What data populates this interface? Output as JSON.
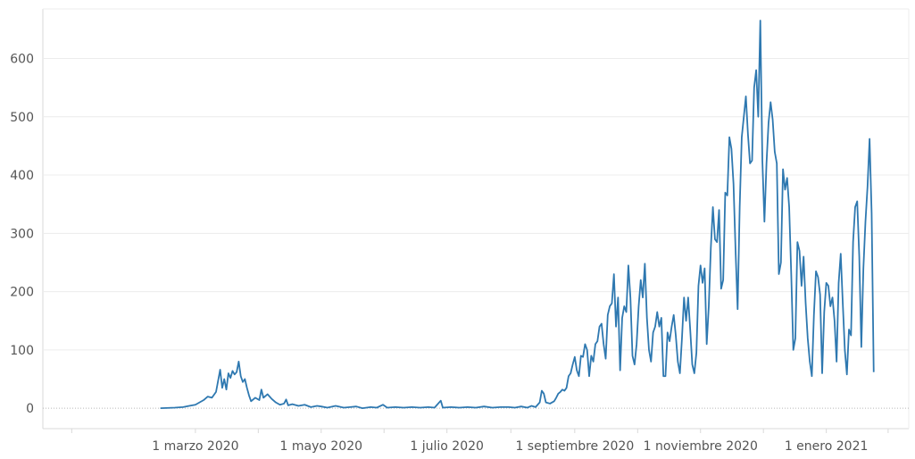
{
  "chart_data": {
    "type": "line",
    "title": "",
    "xlabel": "",
    "ylabel": "",
    "x_axis": {
      "type": "date",
      "range": [
        "2019-12-18",
        "2021-02-10"
      ],
      "ticks": [
        {
          "date": "2020-03-01",
          "label": "1 marzo 2020"
        },
        {
          "date": "2020-05-01",
          "label": "1 mayo 2020"
        },
        {
          "date": "2020-07-01",
          "label": "1 julio 2020"
        },
        {
          "date": "2020-09-01",
          "label": "1 septiembre 2020"
        },
        {
          "date": "2020-11-01",
          "label": "1 noviembre 2020"
        },
        {
          "date": "2021-01-01",
          "label": "1 enero 2021"
        }
      ]
    },
    "y_axis": {
      "range": [
        -35,
        685
      ],
      "ticks": [
        0,
        100,
        200,
        300,
        400,
        500,
        600
      ]
    },
    "grid": true,
    "legend": "none",
    "colors": {
      "series": "#2e78b0",
      "grid": "#ececec",
      "text": "#555555"
    },
    "series": [
      {
        "points": [
          [
            "2020-02-13",
            0
          ],
          [
            "2020-02-20",
            1
          ],
          [
            "2020-02-24",
            2
          ],
          [
            "2020-02-27",
            4
          ],
          [
            "2020-03-01",
            6
          ],
          [
            "2020-03-03",
            10
          ],
          [
            "2020-03-05",
            14
          ],
          [
            "2020-03-07",
            20
          ],
          [
            "2020-03-09",
            18
          ],
          [
            "2020-03-11",
            28
          ],
          [
            "2020-03-13",
            66
          ],
          [
            "2020-03-14",
            35
          ],
          [
            "2020-03-15",
            50
          ],
          [
            "2020-03-16",
            32
          ],
          [
            "2020-03-17",
            60
          ],
          [
            "2020-03-18",
            52
          ],
          [
            "2020-03-19",
            64
          ],
          [
            "2020-03-20",
            58
          ],
          [
            "2020-03-21",
            62
          ],
          [
            "2020-03-22",
            80
          ],
          [
            "2020-03-23",
            55
          ],
          [
            "2020-03-24",
            45
          ],
          [
            "2020-03-25",
            50
          ],
          [
            "2020-03-26",
            35
          ],
          [
            "2020-03-27",
            22
          ],
          [
            "2020-03-28",
            12
          ],
          [
            "2020-03-30",
            18
          ],
          [
            "2020-04-01",
            14
          ],
          [
            "2020-04-02",
            32
          ],
          [
            "2020-04-03",
            18
          ],
          [
            "2020-04-05",
            24
          ],
          [
            "2020-04-07",
            16
          ],
          [
            "2020-04-09",
            10
          ],
          [
            "2020-04-11",
            6
          ],
          [
            "2020-04-13",
            8
          ],
          [
            "2020-04-14",
            15
          ],
          [
            "2020-04-15",
            5
          ],
          [
            "2020-04-17",
            7
          ],
          [
            "2020-04-20",
            4
          ],
          [
            "2020-04-23",
            6
          ],
          [
            "2020-04-26",
            2
          ],
          [
            "2020-04-29",
            4
          ],
          [
            "2020-05-01",
            3
          ],
          [
            "2020-05-04",
            1
          ],
          [
            "2020-05-08",
            4
          ],
          [
            "2020-05-12",
            1
          ],
          [
            "2020-05-15",
            2
          ],
          [
            "2020-05-18",
            3
          ],
          [
            "2020-05-21",
            0
          ],
          [
            "2020-05-25",
            2
          ],
          [
            "2020-05-28",
            1
          ],
          [
            "2020-05-31",
            6
          ],
          [
            "2020-06-02",
            1
          ],
          [
            "2020-06-06",
            2
          ],
          [
            "2020-06-10",
            1
          ],
          [
            "2020-06-14",
            2
          ],
          [
            "2020-06-18",
            1
          ],
          [
            "2020-06-22",
            2
          ],
          [
            "2020-06-25",
            1
          ],
          [
            "2020-06-28",
            13
          ],
          [
            "2020-06-29",
            1
          ],
          [
            "2020-07-03",
            2
          ],
          [
            "2020-07-07",
            1
          ],
          [
            "2020-07-11",
            2
          ],
          [
            "2020-07-15",
            1
          ],
          [
            "2020-07-19",
            3
          ],
          [
            "2020-07-23",
            1
          ],
          [
            "2020-07-27",
            2
          ],
          [
            "2020-07-31",
            2
          ],
          [
            "2020-08-03",
            1
          ],
          [
            "2020-08-06",
            3
          ],
          [
            "2020-08-09",
            1
          ],
          [
            "2020-08-11",
            4
          ],
          [
            "2020-08-13",
            2
          ],
          [
            "2020-08-15",
            10
          ],
          [
            "2020-08-16",
            30
          ],
          [
            "2020-08-17",
            25
          ],
          [
            "2020-08-18",
            10
          ],
          [
            "2020-08-20",
            8
          ],
          [
            "2020-08-22",
            12
          ],
          [
            "2020-08-23",
            18
          ],
          [
            "2020-08-24",
            25
          ],
          [
            "2020-08-25",
            28
          ],
          [
            "2020-08-26",
            32
          ],
          [
            "2020-08-27",
            30
          ],
          [
            "2020-08-28",
            35
          ],
          [
            "2020-08-29",
            55
          ],
          [
            "2020-08-30",
            60
          ],
          [
            "2020-08-31",
            75
          ],
          [
            "2020-09-01",
            88
          ],
          [
            "2020-09-02",
            65
          ],
          [
            "2020-09-03",
            55
          ],
          [
            "2020-09-04",
            90
          ],
          [
            "2020-09-05",
            88
          ],
          [
            "2020-09-06",
            110
          ],
          [
            "2020-09-07",
            100
          ],
          [
            "2020-09-08",
            55
          ],
          [
            "2020-09-09",
            90
          ],
          [
            "2020-09-10",
            80
          ],
          [
            "2020-09-11",
            110
          ],
          [
            "2020-09-12",
            115
          ],
          [
            "2020-09-13",
            140
          ],
          [
            "2020-09-14",
            145
          ],
          [
            "2020-09-15",
            110
          ],
          [
            "2020-09-16",
            85
          ],
          [
            "2020-09-17",
            160
          ],
          [
            "2020-09-18",
            175
          ],
          [
            "2020-09-19",
            180
          ],
          [
            "2020-09-20",
            230
          ],
          [
            "2020-09-21",
            140
          ],
          [
            "2020-09-22",
            190
          ],
          [
            "2020-09-23",
            65
          ],
          [
            "2020-09-24",
            155
          ],
          [
            "2020-09-25",
            175
          ],
          [
            "2020-09-26",
            165
          ],
          [
            "2020-09-27",
            245
          ],
          [
            "2020-09-28",
            190
          ],
          [
            "2020-09-29",
            90
          ],
          [
            "2020-09-30",
            75
          ],
          [
            "2020-10-01",
            110
          ],
          [
            "2020-10-02",
            175
          ],
          [
            "2020-10-03",
            220
          ],
          [
            "2020-10-04",
            190
          ],
          [
            "2020-10-05",
            248
          ],
          [
            "2020-10-06",
            155
          ],
          [
            "2020-10-07",
            100
          ],
          [
            "2020-10-08",
            80
          ],
          [
            "2020-10-09",
            130
          ],
          [
            "2020-10-10",
            140
          ],
          [
            "2020-10-11",
            165
          ],
          [
            "2020-10-12",
            140
          ],
          [
            "2020-10-13",
            155
          ],
          [
            "2020-10-14",
            55
          ],
          [
            "2020-10-15",
            55
          ],
          [
            "2020-10-16",
            130
          ],
          [
            "2020-10-17",
            115
          ],
          [
            "2020-10-18",
            140
          ],
          [
            "2020-10-19",
            160
          ],
          [
            "2020-10-20",
            125
          ],
          [
            "2020-10-21",
            80
          ],
          [
            "2020-10-22",
            60
          ],
          [
            "2020-10-23",
            120
          ],
          [
            "2020-10-24",
            190
          ],
          [
            "2020-10-25",
            150
          ],
          [
            "2020-10-26",
            190
          ],
          [
            "2020-10-27",
            135
          ],
          [
            "2020-10-28",
            75
          ],
          [
            "2020-10-29",
            60
          ],
          [
            "2020-10-30",
            95
          ],
          [
            "2020-10-31",
            210
          ],
          [
            "2020-11-01",
            245
          ],
          [
            "2020-11-02",
            215
          ],
          [
            "2020-11-03",
            240
          ],
          [
            "2020-11-04",
            110
          ],
          [
            "2020-11-05",
            175
          ],
          [
            "2020-11-06",
            275
          ],
          [
            "2020-11-07",
            345
          ],
          [
            "2020-11-08",
            290
          ],
          [
            "2020-11-09",
            285
          ],
          [
            "2020-11-10",
            340
          ],
          [
            "2020-11-11",
            205
          ],
          [
            "2020-11-12",
            220
          ],
          [
            "2020-11-13",
            370
          ],
          [
            "2020-11-14",
            365
          ],
          [
            "2020-11-15",
            465
          ],
          [
            "2020-11-16",
            445
          ],
          [
            "2020-11-17",
            385
          ],
          [
            "2020-11-18",
            270
          ],
          [
            "2020-11-19",
            170
          ],
          [
            "2020-11-20",
            345
          ],
          [
            "2020-11-21",
            465
          ],
          [
            "2020-11-22",
            500
          ],
          [
            "2020-11-23",
            535
          ],
          [
            "2020-11-24",
            470
          ],
          [
            "2020-11-25",
            420
          ],
          [
            "2020-11-26",
            425
          ],
          [
            "2020-11-27",
            550
          ],
          [
            "2020-11-28",
            580
          ],
          [
            "2020-11-29",
            500
          ],
          [
            "2020-11-30",
            665
          ],
          [
            "2020-12-01",
            425
          ],
          [
            "2020-12-02",
            320
          ],
          [
            "2020-12-03",
            420
          ],
          [
            "2020-12-04",
            490
          ],
          [
            "2020-12-05",
            525
          ],
          [
            "2020-12-06",
            495
          ],
          [
            "2020-12-07",
            440
          ],
          [
            "2020-12-08",
            420
          ],
          [
            "2020-12-09",
            230
          ],
          [
            "2020-12-10",
            250
          ],
          [
            "2020-12-11",
            410
          ],
          [
            "2020-12-12",
            375
          ],
          [
            "2020-12-13",
            395
          ],
          [
            "2020-12-14",
            345
          ],
          [
            "2020-12-15",
            230
          ],
          [
            "2020-12-16",
            100
          ],
          [
            "2020-12-17",
            120
          ],
          [
            "2020-12-18",
            285
          ],
          [
            "2020-12-19",
            270
          ],
          [
            "2020-12-20",
            210
          ],
          [
            "2020-12-21",
            260
          ],
          [
            "2020-12-22",
            180
          ],
          [
            "2020-12-23",
            120
          ],
          [
            "2020-12-24",
            80
          ],
          [
            "2020-12-25",
            55
          ],
          [
            "2020-12-26",
            160
          ],
          [
            "2020-12-27",
            235
          ],
          [
            "2020-12-28",
            225
          ],
          [
            "2020-12-29",
            195
          ],
          [
            "2020-12-30",
            60
          ],
          [
            "2020-12-31",
            165
          ],
          [
            "2021-01-01",
            215
          ],
          [
            "2021-01-02",
            210
          ],
          [
            "2021-01-03",
            175
          ],
          [
            "2021-01-04",
            190
          ],
          [
            "2021-01-05",
            150
          ],
          [
            "2021-01-06",
            80
          ],
          [
            "2021-01-07",
            215
          ],
          [
            "2021-01-08",
            265
          ],
          [
            "2021-01-09",
            180
          ],
          [
            "2021-01-10",
            100
          ],
          [
            "2021-01-11",
            58
          ],
          [
            "2021-01-12",
            135
          ],
          [
            "2021-01-13",
            125
          ],
          [
            "2021-01-14",
            285
          ],
          [
            "2021-01-15",
            345
          ],
          [
            "2021-01-16",
            355
          ],
          [
            "2021-01-17",
            260
          ],
          [
            "2021-01-18",
            105
          ],
          [
            "2021-01-19",
            240
          ],
          [
            "2021-01-20",
            320
          ],
          [
            "2021-01-21",
            380
          ],
          [
            "2021-01-22",
            462
          ],
          [
            "2021-01-23",
            335
          ],
          [
            "2021-01-24",
            62
          ]
        ]
      }
    ]
  }
}
